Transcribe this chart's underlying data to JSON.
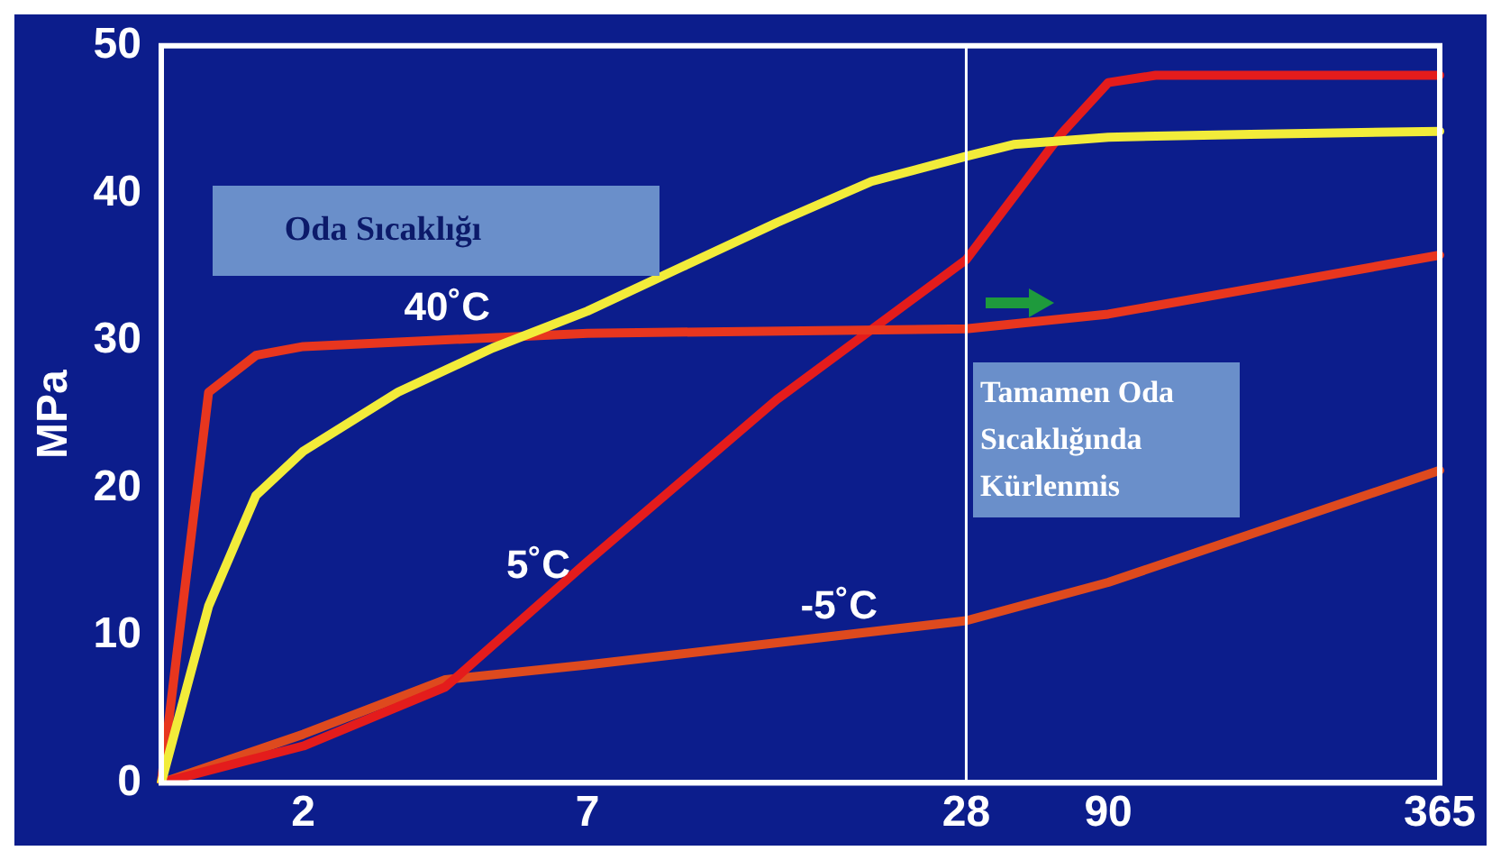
{
  "chart_data": {
    "type": "line",
    "ylabel": "MPa",
    "categories": [
      null,
      null,
      null,
      "2",
      null,
      null,
      null,
      null,
      null,
      "7",
      null,
      null,
      null,
      null,
      null,
      null,
      null,
      "28",
      null,
      null,
      "90",
      null,
      null,
      null,
      null,
      null,
      null,
      "365"
    ],
    "ylim": [
      0,
      50
    ],
    "yticks": [
      0,
      10,
      20,
      30,
      40,
      50
    ],
    "series": [
      {
        "name": "Oda Sıcaklığı",
        "color": "#f2ec3a",
        "values": [
          0,
          12,
          19.5,
          22.5,
          null,
          26.5,
          null,
          29.5,
          null,
          32,
          null,
          35,
          null,
          38,
          null,
          40.8,
          null,
          42.5,
          43.3,
          null,
          43.8,
          null,
          null,
          44,
          null,
          null,
          null,
          44.2
        ]
      },
      {
        "name": "40˚C",
        "color": "#e8361e",
        "values": [
          0,
          26.5,
          29,
          29.6,
          null,
          null,
          null,
          null,
          null,
          30.5,
          null,
          null,
          null,
          null,
          null,
          null,
          null,
          30.8,
          null,
          null,
          31.8,
          null,
          null,
          null,
          null,
          null,
          null,
          35.8
        ]
      },
      {
        "name": "5˚C",
        "color": "#e41c1c",
        "values": [
          0,
          null,
          null,
          2.5,
          null,
          null,
          6.5,
          null,
          null,
          15,
          null,
          null,
          null,
          26,
          null,
          null,
          null,
          35.5,
          null,
          44,
          47.5,
          48,
          null,
          null,
          null,
          null,
          null,
          48
        ]
      },
      {
        "name": "-5˚C",
        "color": "#de4a1e",
        "values": [
          0,
          null,
          null,
          3.3,
          null,
          null,
          7,
          null,
          null,
          8,
          null,
          null,
          null,
          null,
          null,
          null,
          null,
          11,
          null,
          null,
          13.6,
          null,
          null,
          null,
          null,
          null,
          null,
          21.2
        ]
      }
    ],
    "ref_lines": [
      {
        "axis": "x",
        "value": "28",
        "color": "#ffffff"
      }
    ],
    "annotations": [
      "Tamamen Oda Sıcaklığında Kürlenmis"
    ],
    "legend": false,
    "grid": false,
    "marker": "none",
    "line_style": "solid"
  }
}
